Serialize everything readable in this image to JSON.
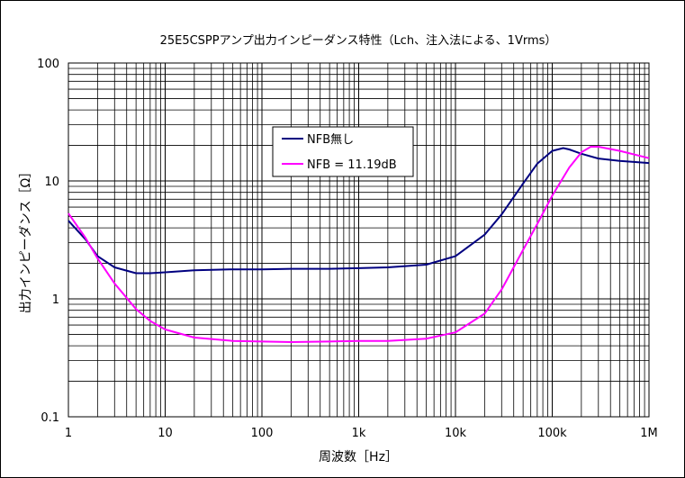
{
  "chart_data": {
    "type": "line",
    "title": "25E5CSPPアンプ出力インピーダンス特性（Lch、注入法による、1Vrms）",
    "xlabel": "周波数［Hz］",
    "ylabel": "出力インピーダンス［Ω］",
    "x_scale": "log",
    "y_scale": "log",
    "xlim": [
      1,
      1000000
    ],
    "ylim": [
      0.1,
      100
    ],
    "x_ticks": [
      {
        "value": 1,
        "label": "1"
      },
      {
        "value": 10,
        "label": "10"
      },
      {
        "value": 100,
        "label": "100"
      },
      {
        "value": 1000,
        "label": "1k"
      },
      {
        "value": 10000,
        "label": "10k"
      },
      {
        "value": 100000,
        "label": "100k"
      },
      {
        "value": 1000000,
        "label": "1M"
      }
    ],
    "y_ticks": [
      {
        "value": 0.1,
        "label": "0.1"
      },
      {
        "value": 1,
        "label": "1"
      },
      {
        "value": 10,
        "label": "10"
      },
      {
        "value": 100,
        "label": "100"
      }
    ],
    "grid": true,
    "legend_position": "upper-center",
    "series": [
      {
        "name": "NFB無し",
        "color": "#000080",
        "x": [
          1,
          1.5,
          2,
          3,
          5,
          7,
          10,
          20,
          50,
          100,
          200,
          500,
          1000,
          2000,
          5000,
          10000,
          20000,
          30000,
          50000,
          70000,
          100000,
          130000,
          150000,
          200000,
          300000,
          500000,
          1000000
        ],
        "y": [
          4.6,
          3.2,
          2.3,
          1.85,
          1.65,
          1.65,
          1.68,
          1.75,
          1.78,
          1.78,
          1.8,
          1.8,
          1.82,
          1.85,
          1.95,
          2.3,
          3.5,
          5.2,
          9.5,
          14,
          18,
          19,
          18.5,
          17,
          15.5,
          14.8,
          14.2
        ]
      },
      {
        "name": "NFB = 11.19dB",
        "color": "#ff00ff",
        "x": [
          1,
          1.5,
          2,
          3,
          5,
          7,
          10,
          20,
          50,
          100,
          200,
          500,
          1000,
          2000,
          5000,
          10000,
          20000,
          30000,
          50000,
          70000,
          100000,
          150000,
          200000,
          250000,
          300000,
          500000,
          1000000
        ],
        "y": [
          5.3,
          3.3,
          2.2,
          1.35,
          0.82,
          0.65,
          0.55,
          0.47,
          0.44,
          0.435,
          0.43,
          0.435,
          0.44,
          0.44,
          0.46,
          0.52,
          0.75,
          1.2,
          2.6,
          4.3,
          7.5,
          13,
          17.5,
          19.5,
          19.5,
          18,
          15.6
        ]
      }
    ]
  },
  "colors": {
    "frame_border": "#000000",
    "grid": "#000000",
    "background": "#ffffff"
  }
}
